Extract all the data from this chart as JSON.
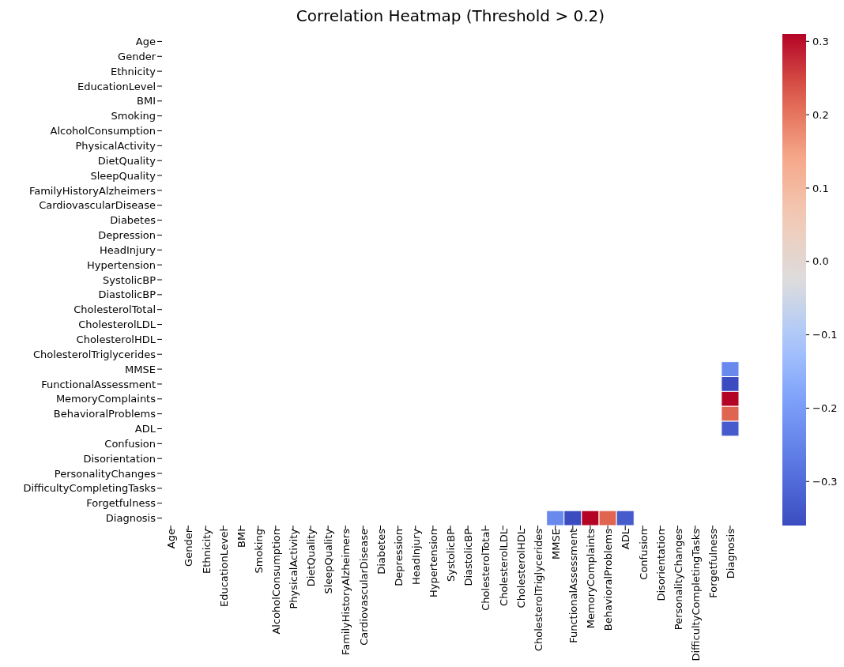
{
  "chart_data": {
    "type": "heatmap",
    "title": "Correlation Heatmap (Threshold > 0.2)",
    "categories": [
      "Age",
      "Gender",
      "Ethnicity",
      "EducationLevel",
      "BMI",
      "Smoking",
      "AlcoholConsumption",
      "PhysicalActivity",
      "DietQuality",
      "SleepQuality",
      "FamilyHistoryAlzheimers",
      "CardiovascularDisease",
      "Diabetes",
      "Depression",
      "HeadInjury",
      "Hypertension",
      "SystolicBP",
      "DiastolicBP",
      "CholesterolTotal",
      "CholesterolLDL",
      "CholesterolHDL",
      "CholesterolTriglycerides",
      "MMSE",
      "FunctionalAssessment",
      "MemoryComplaints",
      "BehavioralProblems",
      "ADL",
      "Confusion",
      "Disorientation",
      "PersonalityChanges",
      "DifficultyCompletingTasks",
      "Forgetfulness",
      "Diagnosis"
    ],
    "y_categories": [
      "Age",
      "Gender",
      "Ethnicity",
      "EducationLevel",
      "BMI",
      "Smoking",
      "AlcoholConsumption",
      "PhysicalActivity",
      "DietQuality",
      "SleepQuality",
      "FamilyHistoryAlzheimers",
      "CardiovascularDisease",
      "Diabetes",
      "Depression",
      "HeadInjury",
      "Hypertension",
      "SystolicBP",
      "DiastolicBP",
      "CholesterolTotal",
      "CholesterolLDL",
      "CholesterolHDL",
      "CholesterolTriglycerides",
      "MMSE",
      "FunctionalAssessment",
      "MemoryComplaints",
      "BehavioralProblems",
      "ADL",
      "Confusion",
      "Disorientation",
      "PersonalityChanges",
      "DifficultyCompletingTasks",
      "Forgetfulness",
      "Diagnosis"
    ],
    "cells": [
      [
        null,
        null,
        null,
        null,
        null,
        null,
        null,
        null,
        null,
        null,
        null,
        null,
        null,
        null,
        null,
        null,
        null,
        null,
        null,
        null,
        null,
        null,
        null,
        null,
        null,
        null,
        null,
        null,
        null,
        null,
        null,
        null,
        null
      ],
      [
        null,
        null,
        null,
        null,
        null,
        null,
        null,
        null,
        null,
        null,
        null,
        null,
        null,
        null,
        null,
        null,
        null,
        null,
        null,
        null,
        null,
        null,
        null,
        null,
        null,
        null,
        null,
        null,
        null,
        null,
        null,
        null,
        null
      ],
      [
        null,
        null,
        null,
        null,
        null,
        null,
        null,
        null,
        null,
        null,
        null,
        null,
        null,
        null,
        null,
        null,
        null,
        null,
        null,
        null,
        null,
        null,
        null,
        null,
        null,
        null,
        null,
        null,
        null,
        null,
        null,
        null,
        null
      ],
      [
        null,
        null,
        null,
        null,
        null,
        null,
        null,
        null,
        null,
        null,
        null,
        null,
        null,
        null,
        null,
        null,
        null,
        null,
        null,
        null,
        null,
        null,
        null,
        null,
        null,
        null,
        null,
        null,
        null,
        null,
        null,
        null,
        null
      ],
      [
        null,
        null,
        null,
        null,
        null,
        null,
        null,
        null,
        null,
        null,
        null,
        null,
        null,
        null,
        null,
        null,
        null,
        null,
        null,
        null,
        null,
        null,
        null,
        null,
        null,
        null,
        null,
        null,
        null,
        null,
        null,
        null,
        null
      ],
      [
        null,
        null,
        null,
        null,
        null,
        null,
        null,
        null,
        null,
        null,
        null,
        null,
        null,
        null,
        null,
        null,
        null,
        null,
        null,
        null,
        null,
        null,
        null,
        null,
        null,
        null,
        null,
        null,
        null,
        null,
        null,
        null,
        null
      ],
      [
        null,
        null,
        null,
        null,
        null,
        null,
        null,
        null,
        null,
        null,
        null,
        null,
        null,
        null,
        null,
        null,
        null,
        null,
        null,
        null,
        null,
        null,
        null,
        null,
        null,
        null,
        null,
        null,
        null,
        null,
        null,
        null,
        null
      ],
      [
        null,
        null,
        null,
        null,
        null,
        null,
        null,
        null,
        null,
        null,
        null,
        null,
        null,
        null,
        null,
        null,
        null,
        null,
        null,
        null,
        null,
        null,
        null,
        null,
        null,
        null,
        null,
        null,
        null,
        null,
        null,
        null,
        null
      ],
      [
        null,
        null,
        null,
        null,
        null,
        null,
        null,
        null,
        null,
        null,
        null,
        null,
        null,
        null,
        null,
        null,
        null,
        null,
        null,
        null,
        null,
        null,
        null,
        null,
        null,
        null,
        null,
        null,
        null,
        null,
        null,
        null,
        null
      ],
      [
        null,
        null,
        null,
        null,
        null,
        null,
        null,
        null,
        null,
        null,
        null,
        null,
        null,
        null,
        null,
        null,
        null,
        null,
        null,
        null,
        null,
        null,
        null,
        null,
        null,
        null,
        null,
        null,
        null,
        null,
        null,
        null,
        null
      ],
      [
        null,
        null,
        null,
        null,
        null,
        null,
        null,
        null,
        null,
        null,
        null,
        null,
        null,
        null,
        null,
        null,
        null,
        null,
        null,
        null,
        null,
        null,
        null,
        null,
        null,
        null,
        null,
        null,
        null,
        null,
        null,
        null,
        null
      ],
      [
        null,
        null,
        null,
        null,
        null,
        null,
        null,
        null,
        null,
        null,
        null,
        null,
        null,
        null,
        null,
        null,
        null,
        null,
        null,
        null,
        null,
        null,
        null,
        null,
        null,
        null,
        null,
        null,
        null,
        null,
        null,
        null,
        null
      ],
      [
        null,
        null,
        null,
        null,
        null,
        null,
        null,
        null,
        null,
        null,
        null,
        null,
        null,
        null,
        null,
        null,
        null,
        null,
        null,
        null,
        null,
        null,
        null,
        null,
        null,
        null,
        null,
        null,
        null,
        null,
        null,
        null,
        null
      ],
      [
        null,
        null,
        null,
        null,
        null,
        null,
        null,
        null,
        null,
        null,
        null,
        null,
        null,
        null,
        null,
        null,
        null,
        null,
        null,
        null,
        null,
        null,
        null,
        null,
        null,
        null,
        null,
        null,
        null,
        null,
        null,
        null,
        null
      ],
      [
        null,
        null,
        null,
        null,
        null,
        null,
        null,
        null,
        null,
        null,
        null,
        null,
        null,
        null,
        null,
        null,
        null,
        null,
        null,
        null,
        null,
        null,
        null,
        null,
        null,
        null,
        null,
        null,
        null,
        null,
        null,
        null,
        null
      ],
      [
        null,
        null,
        null,
        null,
        null,
        null,
        null,
        null,
        null,
        null,
        null,
        null,
        null,
        null,
        null,
        null,
        null,
        null,
        null,
        null,
        null,
        null,
        null,
        null,
        null,
        null,
        null,
        null,
        null,
        null,
        null,
        null,
        null
      ],
      [
        null,
        null,
        null,
        null,
        null,
        null,
        null,
        null,
        null,
        null,
        null,
        null,
        null,
        null,
        null,
        null,
        null,
        null,
        null,
        null,
        null,
        null,
        null,
        null,
        null,
        null,
        null,
        null,
        null,
        null,
        null,
        null,
        null
      ],
      [
        null,
        null,
        null,
        null,
        null,
        null,
        null,
        null,
        null,
        null,
        null,
        null,
        null,
        null,
        null,
        null,
        null,
        null,
        null,
        null,
        null,
        null,
        null,
        null,
        null,
        null,
        null,
        null,
        null,
        null,
        null,
        null,
        null
      ],
      [
        null,
        null,
        null,
        null,
        null,
        null,
        null,
        null,
        null,
        null,
        null,
        null,
        null,
        null,
        null,
        null,
        null,
        null,
        null,
        null,
        null,
        null,
        null,
        null,
        null,
        null,
        null,
        null,
        null,
        null,
        null,
        null,
        null
      ],
      [
        null,
        null,
        null,
        null,
        null,
        null,
        null,
        null,
        null,
        null,
        null,
        null,
        null,
        null,
        null,
        null,
        null,
        null,
        null,
        null,
        null,
        null,
        null,
        null,
        null,
        null,
        null,
        null,
        null,
        null,
        null,
        null,
        null
      ],
      [
        null,
        null,
        null,
        null,
        null,
        null,
        null,
        null,
        null,
        null,
        null,
        null,
        null,
        null,
        null,
        null,
        null,
        null,
        null,
        null,
        null,
        null,
        null,
        null,
        null,
        null,
        null,
        null,
        null,
        null,
        null,
        null,
        null
      ],
      [
        null,
        null,
        null,
        null,
        null,
        null,
        null,
        null,
        null,
        null,
        null,
        null,
        null,
        null,
        null,
        null,
        null,
        null,
        null,
        null,
        null,
        null,
        null,
        null,
        null,
        null,
        null,
        null,
        null,
        null,
        null,
        null,
        null
      ],
      [
        null,
        null,
        null,
        null,
        null,
        null,
        null,
        null,
        null,
        null,
        null,
        null,
        null,
        null,
        null,
        null,
        null,
        null,
        null,
        null,
        null,
        null,
        null,
        null,
        null,
        null,
        null,
        null,
        null,
        null,
        null,
        null,
        -0.24
      ],
      [
        null,
        null,
        null,
        null,
        null,
        null,
        null,
        null,
        null,
        null,
        null,
        null,
        null,
        null,
        null,
        null,
        null,
        null,
        null,
        null,
        null,
        null,
        null,
        null,
        null,
        null,
        null,
        null,
        null,
        null,
        null,
        null,
        -0.36
      ],
      [
        null,
        null,
        null,
        null,
        null,
        null,
        null,
        null,
        null,
        null,
        null,
        null,
        null,
        null,
        null,
        null,
        null,
        null,
        null,
        null,
        null,
        null,
        null,
        null,
        null,
        null,
        null,
        null,
        null,
        null,
        null,
        null,
        0.31
      ],
      [
        null,
        null,
        null,
        null,
        null,
        null,
        null,
        null,
        null,
        null,
        null,
        null,
        null,
        null,
        null,
        null,
        null,
        null,
        null,
        null,
        null,
        null,
        null,
        null,
        null,
        null,
        null,
        null,
        null,
        null,
        null,
        null,
        0.22
      ],
      [
        null,
        null,
        null,
        null,
        null,
        null,
        null,
        null,
        null,
        null,
        null,
        null,
        null,
        null,
        null,
        null,
        null,
        null,
        null,
        null,
        null,
        null,
        null,
        null,
        null,
        null,
        null,
        null,
        null,
        null,
        null,
        null,
        -0.33
      ],
      [
        null,
        null,
        null,
        null,
        null,
        null,
        null,
        null,
        null,
        null,
        null,
        null,
        null,
        null,
        null,
        null,
        null,
        null,
        null,
        null,
        null,
        null,
        null,
        null,
        null,
        null,
        null,
        null,
        null,
        null,
        null,
        null,
        null
      ],
      [
        null,
        null,
        null,
        null,
        null,
        null,
        null,
        null,
        null,
        null,
        null,
        null,
        null,
        null,
        null,
        null,
        null,
        null,
        null,
        null,
        null,
        null,
        null,
        null,
        null,
        null,
        null,
        null,
        null,
        null,
        null,
        null,
        null
      ],
      [
        null,
        null,
        null,
        null,
        null,
        null,
        null,
        null,
        null,
        null,
        null,
        null,
        null,
        null,
        null,
        null,
        null,
        null,
        null,
        null,
        null,
        null,
        null,
        null,
        null,
        null,
        null,
        null,
        null,
        null,
        null,
        null,
        null
      ],
      [
        null,
        null,
        null,
        null,
        null,
        null,
        null,
        null,
        null,
        null,
        null,
        null,
        null,
        null,
        null,
        null,
        null,
        null,
        null,
        null,
        null,
        null,
        null,
        null,
        null,
        null,
        null,
        null,
        null,
        null,
        null,
        null,
        null
      ],
      [
        null,
        null,
        null,
        null,
        null,
        null,
        null,
        null,
        null,
        null,
        null,
        null,
        null,
        null,
        null,
        null,
        null,
        null,
        null,
        null,
        null,
        null,
        null,
        null,
        null,
        null,
        null,
        null,
        null,
        null,
        null,
        null,
        null
      ],
      [
        null,
        null,
        null,
        null,
        null,
        null,
        null,
        null,
        null,
        null,
        null,
        null,
        null,
        null,
        null,
        null,
        null,
        null,
        null,
        null,
        null,
        null,
        -0.24,
        -0.36,
        0.31,
        0.22,
        -0.33,
        null,
        null,
        null,
        null,
        null,
        null
      ]
    ],
    "clim": [
      -0.36,
      0.31
    ],
    "cticks": [
      -0.3,
      -0.2,
      -0.1,
      {
        "value": 0,
        "label": "0.0"
      },
      0.1,
      0.2,
      0.3
    ]
  }
}
